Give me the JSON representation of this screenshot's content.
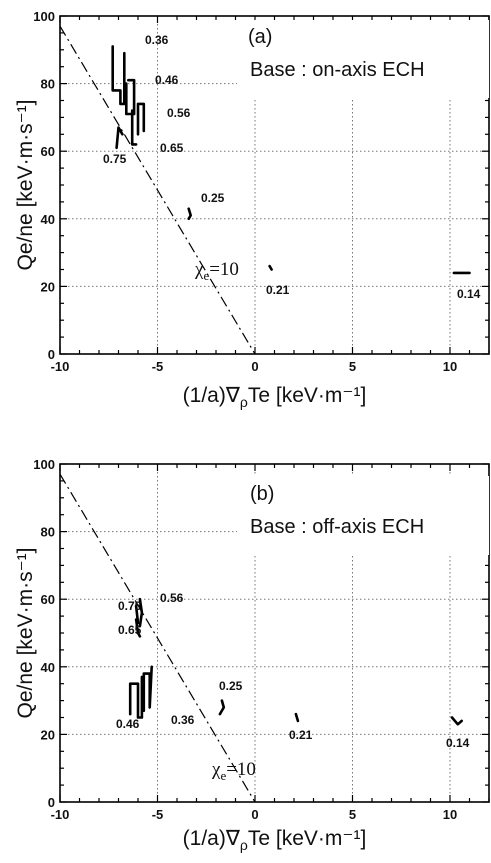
{
  "chart_data": [
    {
      "type": "line",
      "panel_label": "(a)",
      "title": "Base : on-axis ECH",
      "xlabel": "(1/a)∇ρTe [keV·m⁻¹]",
      "ylabel": "Qe/ne [keV·m·s⁻¹]",
      "xlim": [
        -10,
        12
      ],
      "ylim": [
        0,
        100
      ],
      "x_ticks": [
        "-10",
        "-5",
        "0",
        "5",
        "10"
      ],
      "y_ticks": [
        "0",
        "20",
        "40",
        "60",
        "80",
        "100"
      ],
      "grid": true,
      "reference_line": {
        "label": "χe=10",
        "x": [
          -10,
          0
        ],
        "y": [
          97,
          0
        ]
      },
      "series": [
        {
          "name": "0.36",
          "x": [
            -7.3,
            -7.3,
            -6.9,
            -6.9,
            -6.7,
            -6.7
          ],
          "y": [
            91,
            78,
            78,
            74,
            74,
            89
          ]
        },
        {
          "name": "0.46",
          "x": [
            -6.6,
            -6.6,
            -6.2,
            -6.2,
            -6.5
          ],
          "y": [
            80,
            71,
            71,
            81,
            81
          ]
        },
        {
          "name": "0.56",
          "x": [
            -6.0,
            -6.0,
            -5.7,
            -5.7
          ],
          "y": [
            65,
            74,
            74,
            66
          ]
        },
        {
          "name": "0.65",
          "x": [
            -6.3,
            -6.3,
            -6.1
          ],
          "y": [
            72,
            62,
            62
          ]
        },
        {
          "name": "0.75",
          "x": [
            -7.1,
            -7.0,
            -6.8
          ],
          "y": [
            61,
            67,
            65
          ]
        },
        {
          "name": "0.25",
          "x": [
            -3.4,
            -3.3,
            -3.4
          ],
          "y": [
            43,
            41,
            40
          ]
        },
        {
          "name": "0.21",
          "x": [
            0.75,
            0.85
          ],
          "y": [
            26,
            25
          ]
        },
        {
          "name": "0.14",
          "x": [
            10.2,
            11.0
          ],
          "y": [
            24,
            24
          ]
        }
      ]
    },
    {
      "type": "line",
      "panel_label": "(b)",
      "title": "Base : off-axis ECH",
      "xlabel": "(1/a)∇ρTe [keV·m⁻¹]",
      "ylabel": "Qe/ne [keV·m·s⁻¹]",
      "xlim": [
        -10,
        12
      ],
      "ylim": [
        0,
        100
      ],
      "x_ticks": [
        "-10",
        "-5",
        "0",
        "5",
        "10"
      ],
      "y_ticks": [
        "0",
        "20",
        "40",
        "60",
        "80",
        "100"
      ],
      "grid": true,
      "reference_line": {
        "label": "χe=10",
        "x": [
          -10,
          0
        ],
        "y": [
          97,
          0
        ]
      },
      "series": [
        {
          "name": "0.75",
          "x": [
            -6.1,
            -6.0
          ],
          "y": [
            58,
            53
          ]
        },
        {
          "name": "0.56",
          "x": [
            -5.9,
            -5.8,
            -5.9
          ],
          "y": [
            60,
            56,
            52
          ]
        },
        {
          "name": "0.65",
          "x": [
            -6.1,
            -6.0,
            -5.9
          ],
          "y": [
            54,
            50,
            49
          ]
        },
        {
          "name": "0.46",
          "x": [
            -6.4,
            -6.4,
            -6.0,
            -6.0,
            -5.8,
            -5.8
          ],
          "y": [
            26,
            35,
            35,
            25,
            25,
            37
          ]
        },
        {
          "name": "0.36",
          "x": [
            -5.7,
            -5.7,
            -5.4,
            -5.4,
            -5.3
          ],
          "y": [
            27,
            38,
            38,
            28,
            40
          ]
        },
        {
          "name": "0.25",
          "x": [
            -1.8,
            -1.6,
            -1.7
          ],
          "y": [
            26,
            28,
            30
          ]
        },
        {
          "name": "0.21",
          "x": [
            2.1,
            2.2
          ],
          "y": [
            26,
            24
          ]
        },
        {
          "name": "0.14",
          "x": [
            10.1,
            10.4,
            10.6
          ],
          "y": [
            25,
            23,
            24
          ]
        }
      ]
    }
  ]
}
